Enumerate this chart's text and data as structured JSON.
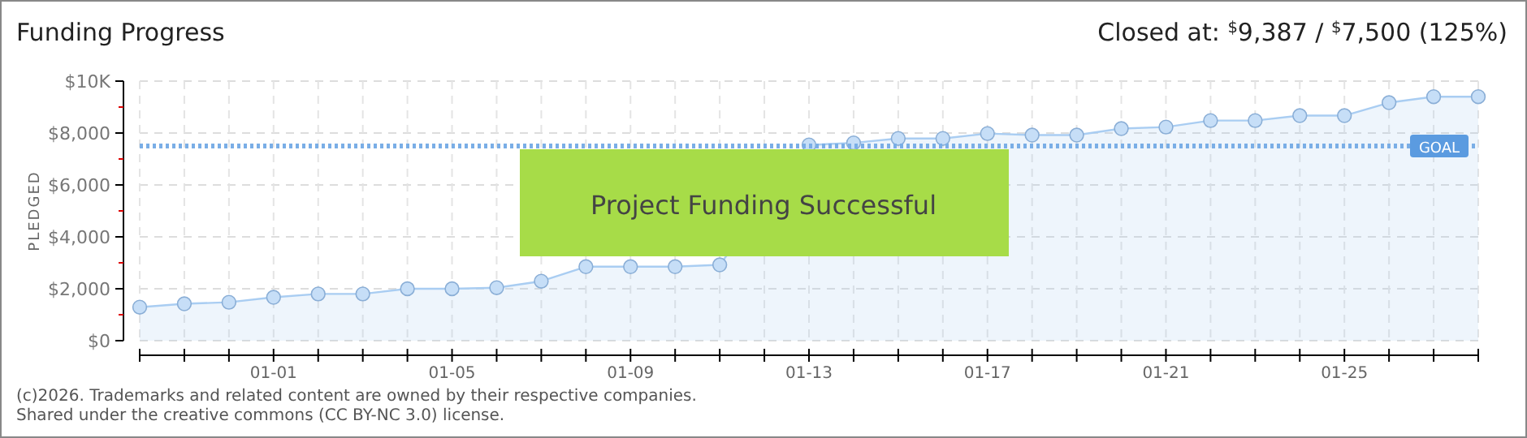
{
  "chart_data": {
    "type": "area",
    "title": "Funding Progress",
    "subtitle": "Closed at: $^{$}$9,387 / $^{$}$7,500 (125%)",
    "ylabel": "PLEDGED",
    "categories": [
      null,
      null,
      null,
      "01-01",
      null,
      null,
      null,
      "01-05",
      null,
      null,
      null,
      "01-09",
      null,
      null,
      null,
      "01-13",
      null,
      null,
      null,
      "01-17",
      null,
      null,
      null,
      "01-21",
      null,
      null,
      null,
      "01-25",
      null,
      null,
      null
    ],
    "series": [
      {
        "color": "#a9cdf2",
        "values": [
          1290,
          1420,
          1480,
          1670,
          1800,
          1800,
          2000,
          2000,
          2040,
          2290,
          2850,
          2850,
          2850,
          2920,
          null,
          7540,
          7620,
          7790,
          7790,
          7980,
          7920,
          7920,
          8170,
          8230,
          8480,
          8480,
          8670,
          8670,
          9170,
          9400,
          9400
        ]
      }
    ],
    "ylim": [
      0,
      10000
    ],
    "yticks": [
      {
        "value": 0,
        "label": "$0"
      },
      {
        "value": 1000,
        "label": null
      },
      {
        "value": 2000,
        "label": "$2,000"
      },
      {
        "value": 3000,
        "label": null
      },
      {
        "value": 4000,
        "label": "$4,000"
      },
      {
        "value": 5000,
        "label": null
      },
      {
        "value": 6000,
        "label": "$6,000"
      },
      {
        "value": 7000,
        "label": null
      },
      {
        "value": 8000,
        "label": "$8,000"
      },
      {
        "value": 9000,
        "label": null
      },
      {
        "value": 10000,
        "label": "$10K"
      }
    ],
    "grid": true,
    "marker": "circle",
    "ref_lines": [
      {
        "axis": "y",
        "value": 7500,
        "label": "GOAL",
        "color": "#7aaee6",
        "line_style": "dotted"
      }
    ],
    "annotations": [
      "Project Funding Successful",
      "(c)2026. Trademarks and related content are owned by their respective companies.",
      "Shared under the creative commons (CC BY-NC 3.0) license."
    ]
  }
}
